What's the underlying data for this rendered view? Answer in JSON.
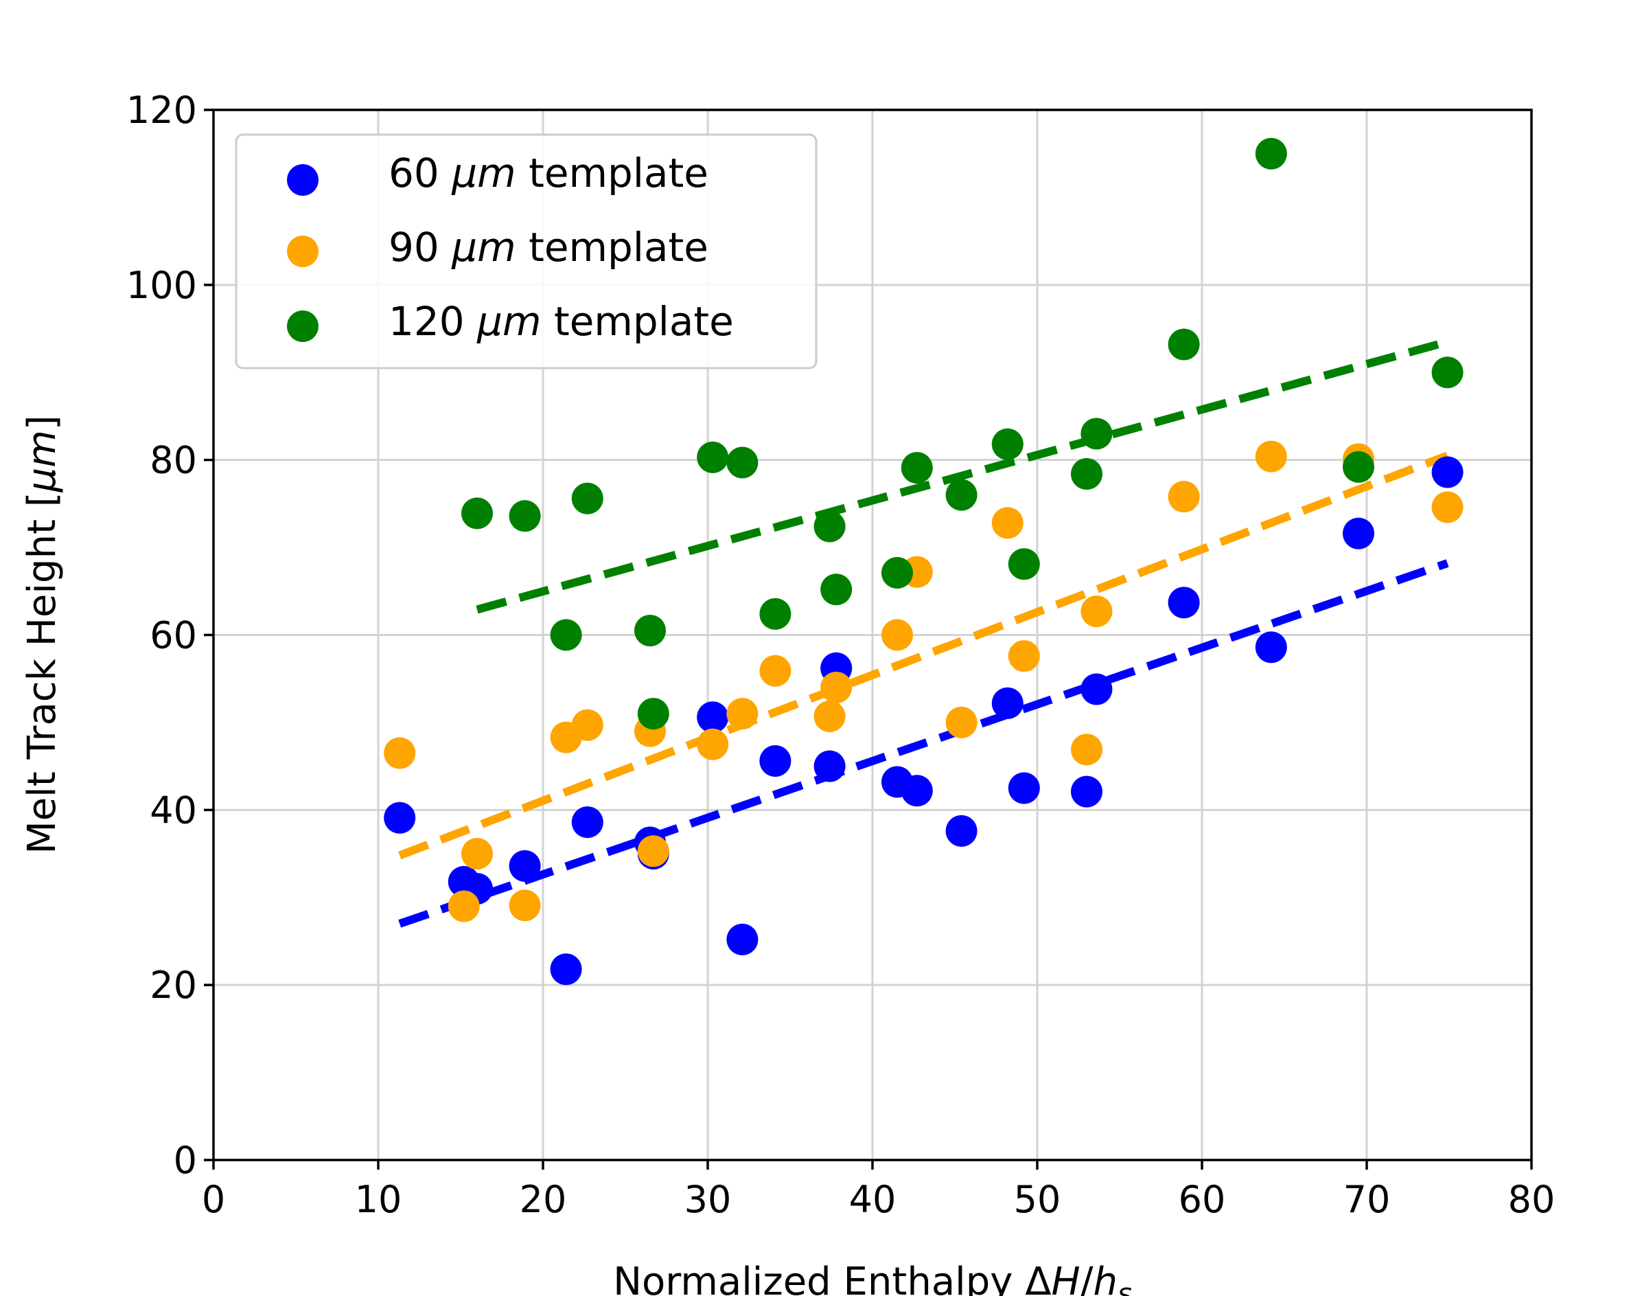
{
  "chart_data": {
    "type": "scatter",
    "xlabel": "Normalized Enthalpy ΔH/h_s",
    "xlabel_parts": {
      "prefix": "Normalized Enthalpy Δ",
      "var": "H",
      "slash": "/",
      "var2": "h",
      "subscript": "s"
    },
    "ylabel": "Melt Track Height [μm]",
    "ylabel_parts": {
      "prefix": "Melt Track Height [",
      "unit": "μm",
      "suffix": "]"
    },
    "xlim": [
      0,
      80
    ],
    "ylim": [
      0,
      120
    ],
    "xticks": [
      0,
      10,
      20,
      30,
      40,
      50,
      60,
      70,
      80
    ],
    "yticks": [
      0,
      20,
      40,
      60,
      80,
      100,
      120
    ],
    "grid": true,
    "legend_position": "top-left",
    "series": [
      {
        "name": "60 μm template",
        "label_num": "60 ",
        "label_unit": "μm",
        "label_rest": " template",
        "color": "#0000ff",
        "points": [
          [
            11.3,
            39.1
          ],
          [
            15.2,
            31.8
          ],
          [
            16.0,
            31.0
          ],
          [
            18.9,
            33.6
          ],
          [
            21.4,
            21.8
          ],
          [
            22.7,
            38.6
          ],
          [
            26.5,
            36.3
          ],
          [
            26.7,
            35.0
          ],
          [
            30.3,
            50.6
          ],
          [
            32.1,
            25.2
          ],
          [
            34.1,
            45.6
          ],
          [
            37.4,
            45.0
          ],
          [
            37.8,
            56.2
          ],
          [
            41.5,
            43.2
          ],
          [
            42.7,
            42.2
          ],
          [
            45.4,
            37.6
          ],
          [
            48.2,
            52.2
          ],
          [
            49.2,
            42.5
          ],
          [
            53.0,
            42.1
          ],
          [
            53.6,
            53.8
          ],
          [
            58.9,
            63.7
          ],
          [
            64.2,
            58.6
          ],
          [
            69.5,
            71.6
          ],
          [
            74.9,
            78.6
          ]
        ],
        "fit": {
          "x": [
            11.3,
            74.9
          ],
          "y": [
            27.0,
            68.2
          ]
        }
      },
      {
        "name": "90 μm template",
        "label_num": "90 ",
        "label_unit": "μm",
        "label_rest": " template",
        "color": "#ffa500",
        "points": [
          [
            11.3,
            46.5
          ],
          [
            15.2,
            29.0
          ],
          [
            16.0,
            35.0
          ],
          [
            18.9,
            29.1
          ],
          [
            21.4,
            48.3
          ],
          [
            22.7,
            49.7
          ],
          [
            26.5,
            49.0
          ],
          [
            26.7,
            35.3
          ],
          [
            30.3,
            47.5
          ],
          [
            32.1,
            51.0
          ],
          [
            34.1,
            55.9
          ],
          [
            37.4,
            50.7
          ],
          [
            37.8,
            54.0
          ],
          [
            41.5,
            60.0
          ],
          [
            42.7,
            67.2
          ],
          [
            45.4,
            50.0
          ],
          [
            48.2,
            72.8
          ],
          [
            49.2,
            57.6
          ],
          [
            53.0,
            46.9
          ],
          [
            53.6,
            62.7
          ],
          [
            58.9,
            75.8
          ],
          [
            64.2,
            80.4
          ],
          [
            69.5,
            80.1
          ],
          [
            74.9,
            74.6
          ]
        ],
        "fit": {
          "x": [
            11.3,
            74.9
          ],
          "y": [
            34.8,
            80.5
          ]
        }
      },
      {
        "name": "120 μm template",
        "label_num": "120 ",
        "label_unit": "μm",
        "label_rest": " template",
        "color": "#008000",
        "points": [
          [
            16.0,
            73.9
          ],
          [
            18.9,
            73.6
          ],
          [
            21.4,
            60.0
          ],
          [
            22.7,
            75.6
          ],
          [
            26.5,
            60.5
          ],
          [
            26.7,
            51.0
          ],
          [
            30.3,
            80.3
          ],
          [
            32.1,
            79.7
          ],
          [
            34.1,
            62.4
          ],
          [
            37.4,
            72.4
          ],
          [
            37.8,
            65.2
          ],
          [
            41.5,
            67.1
          ],
          [
            42.7,
            79.1
          ],
          [
            45.4,
            76.0
          ],
          [
            48.2,
            81.8
          ],
          [
            49.2,
            68.1
          ],
          [
            53.0,
            78.4
          ],
          [
            53.6,
            83.0
          ],
          [
            58.9,
            93.2
          ],
          [
            64.2,
            115.0
          ],
          [
            69.5,
            79.2
          ],
          [
            74.9,
            90.0
          ]
        ],
        "fit": {
          "x": [
            16.0,
            74.9
          ],
          "y": [
            62.9,
            93.5
          ]
        }
      }
    ]
  }
}
